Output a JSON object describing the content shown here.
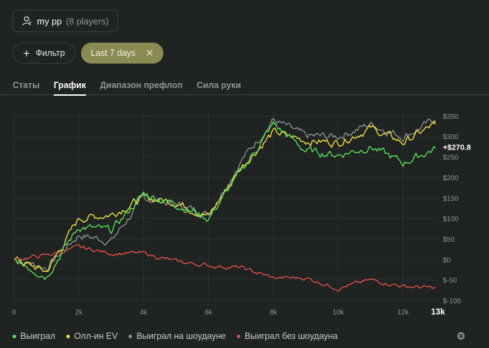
{
  "player": {
    "name": "my pp",
    "count": "(8 players)",
    "icon": "user-icon"
  },
  "filters": {
    "filter_label": "Фильтр",
    "active_filter": "Last 7 days"
  },
  "tabs": [
    {
      "label": "Статы",
      "active": false
    },
    {
      "label": "График",
      "active": true
    },
    {
      "label": "Диапазон префлоп",
      "active": false
    },
    {
      "label": "Сила руки",
      "active": false
    }
  ],
  "colors": {
    "background": "#1f2321",
    "won": "#55e35a",
    "allin_ev": "#f3e23a",
    "showdown": "#8e918f",
    "non_showdown": "#e0504a",
    "pill": "#8a8b52"
  },
  "chart_data": {
    "type": "line",
    "x": [
      0,
      1000,
      2000,
      3000,
      4000,
      5000,
      6000,
      7000,
      8000,
      9000,
      10000,
      11000,
      12000,
      13000
    ],
    "xticks": [
      "0",
      "2k",
      "4k",
      "6k",
      "8k",
      "10k",
      "12k",
      "13k"
    ],
    "xlim": [
      0,
      13100
    ],
    "ylim": [
      -100,
      360
    ],
    "yticks": [
      "$350",
      "$300",
      "$250",
      "$200",
      "$150",
      "$100",
      "$50",
      "$0",
      "$-50",
      "$-100"
    ],
    "final_label": "+$270.8",
    "grid": true,
    "series": [
      {
        "name": "Выиграл",
        "values": [
          0,
          -40,
          80,
          70,
          160,
          135,
          100,
          215,
          330,
          265,
          255,
          275,
          235,
          270.8
        ]
      },
      {
        "name": "Олл-ин EV",
        "values": [
          0,
          -30,
          100,
          110,
          150,
          140,
          105,
          225,
          310,
          290,
          285,
          320,
          285,
          330
        ]
      },
      {
        "name": "Выиграл на шоудауне",
        "values": [
          0,
          -20,
          60,
          45,
          150,
          135,
          110,
          240,
          340,
          300,
          300,
          330,
          300,
          340
        ]
      },
      {
        "name": "Выиграл без шоудауна",
        "values": [
          0,
          10,
          30,
          15,
          15,
          -5,
          -15,
          -20,
          -45,
          -45,
          -70,
          -50,
          -65,
          -70
        ]
      }
    ]
  },
  "settings_icon": "gear-icon"
}
